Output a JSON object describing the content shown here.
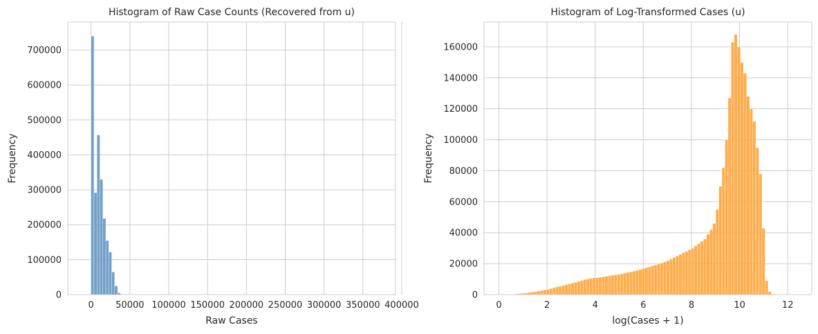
{
  "chart_data": [
    {
      "type": "bar",
      "title": "Histogram of Raw Case Counts (Recovered from u)",
      "xlabel": "Raw Cases",
      "ylabel": "Frequency",
      "xlim": [
        -30000,
        392000
      ],
      "ylim": [
        0,
        780000
      ],
      "xticks": [
        0,
        50000,
        100000,
        150000,
        200000,
        250000,
        300000,
        350000,
        400000
      ],
      "xtick_labels": [
        "0",
        "50000",
        "100000",
        "150000",
        "200000",
        "250000",
        "300000",
        "350000",
        "400000"
      ],
      "yticks": [
        0,
        100000,
        200000,
        300000,
        400000,
        500000,
        600000,
        700000
      ],
      "ytick_labels": [
        "0",
        "100000",
        "200000",
        "300000",
        "400000",
        "500000",
        "600000",
        "700000"
      ],
      "bin_width": 3800,
      "bin_start": 0,
      "values": [
        740000,
        292000,
        457000,
        330000,
        218000,
        155000,
        122000,
        65000,
        25000,
        5000,
        1500,
        500
      ],
      "color": "#5b8fbf",
      "grid": true,
      "legend": "none"
    },
    {
      "type": "bar",
      "title": "Histogram of Log-Transformed Cases (u)",
      "xlabel": "log(Cases + 1)",
      "ylabel": "Frequency",
      "xlim": [
        -0.62,
        13.0
      ],
      "ylim": [
        0,
        176000
      ],
      "xticks": [
        0,
        2,
        4,
        6,
        8,
        10,
        12
      ],
      "xtick_labels": [
        "0",
        "2",
        "4",
        "6",
        "8",
        "10",
        "12"
      ],
      "yticks": [
        0,
        20000,
        40000,
        60000,
        80000,
        100000,
        120000,
        140000,
        160000
      ],
      "ytick_labels": [
        "0",
        "20000",
        "40000",
        "60000",
        "80000",
        "100000",
        "120000",
        "140000",
        "160000"
      ],
      "bin_width": 0.128,
      "bin_start": 0.69,
      "values": [
        500,
        700,
        900,
        1100,
        1400,
        1700,
        2000,
        2300,
        2700,
        3100,
        3500,
        4000,
        4500,
        5000,
        5500,
        6000,
        6500,
        7000,
        7500,
        8000,
        8600,
        9200,
        9800,
        10200,
        10500,
        10800,
        11000,
        11300,
        11600,
        11900,
        12200,
        12500,
        12800,
        13100,
        13500,
        13900,
        14300,
        14700,
        15200,
        15700,
        16200,
        16800,
        17400,
        18000,
        18600,
        19200,
        19800,
        20500,
        21200,
        22000,
        23000,
        24000,
        25000,
        26000,
        27000,
        28000,
        29000,
        30000,
        31500,
        33000,
        34500,
        36000,
        39000,
        42000,
        46000,
        55000,
        70000,
        82000,
        100000,
        127000,
        163000,
        168000,
        160000,
        150000,
        143000,
        128000,
        120000,
        112000,
        95000,
        78000,
        43000,
        9000,
        2000,
        500,
        100
      ],
      "color": "#ff9f2d",
      "grid": true,
      "legend": "none"
    }
  ]
}
